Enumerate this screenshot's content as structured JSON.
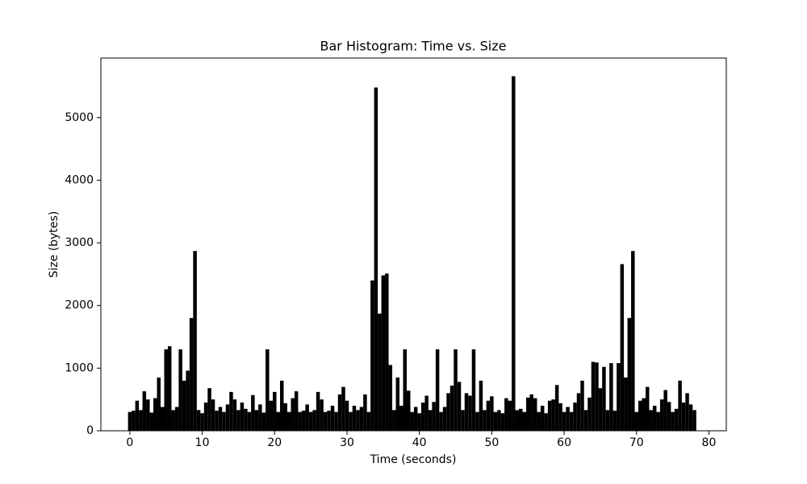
{
  "chart_data": {
    "type": "bar",
    "title": "Bar Histogram: Time vs. Size",
    "xlabel": "Time (seconds)",
    "ylabel": "Size (bytes)",
    "color": "#000000",
    "xlim": [
      -4,
      82.4
    ],
    "ylim": [
      0,
      5950
    ],
    "xticks": [
      0,
      10,
      20,
      30,
      40,
      50,
      60,
      70,
      80
    ],
    "yticks": [
      0,
      1000,
      2000,
      3000,
      4000,
      5000
    ],
    "x": [
      0,
      0.5,
      1,
      1.5,
      2,
      2.5,
      3,
      3.5,
      4,
      4.5,
      5,
      5.5,
      6,
      6.5,
      7,
      7.5,
      8,
      8.5,
      9,
      9.5,
      10,
      10.5,
      11,
      11.5,
      12,
      12.5,
      13,
      13.5,
      14,
      14.5,
      15,
      15.5,
      16,
      16.5,
      17,
      17.5,
      18,
      18.5,
      19,
      19.5,
      20,
      20.5,
      21,
      21.5,
      22,
      22.5,
      23,
      23.5,
      24,
      24.5,
      25,
      25.5,
      26,
      26.5,
      27,
      27.5,
      28,
      28.5,
      29,
      29.5,
      30,
      30.5,
      31,
      31.5,
      32,
      32.5,
      33,
      33.5,
      34,
      34.5,
      35,
      35.5,
      36,
      36.5,
      37,
      37.5,
      38,
      38.5,
      39,
      39.5,
      40,
      40.5,
      41,
      41.5,
      42,
      42.5,
      43,
      43.5,
      44,
      44.5,
      45,
      45.5,
      46,
      46.5,
      47,
      47.5,
      48,
      48.5,
      49,
      49.5,
      50,
      50.5,
      51,
      51.5,
      52,
      52.5,
      53,
      53.5,
      54,
      54.5,
      55,
      55.5,
      56,
      56.5,
      57,
      57.5,
      58,
      58.5,
      59,
      59.5,
      60,
      60.5,
      61,
      61.5,
      62,
      62.5,
      63,
      63.5,
      64,
      64.5,
      65,
      65.5,
      66,
      66.5,
      67,
      67.5,
      68,
      68.5,
      69,
      69.5,
      70,
      70.5,
      71,
      71.5,
      72,
      72.5,
      73,
      73.5,
      74,
      74.5,
      75,
      75.5,
      76,
      76.5,
      77,
      77.5,
      78
    ],
    "values": [
      300,
      320,
      480,
      330,
      630,
      500,
      290,
      520,
      850,
      380,
      1300,
      1350,
      330,
      380,
      1300,
      800,
      960,
      1800,
      2870,
      330,
      280,
      450,
      680,
      500,
      320,
      380,
      300,
      420,
      620,
      500,
      330,
      450,
      350,
      300,
      570,
      330,
      420,
      290,
      1300,
      480,
      620,
      300,
      800,
      440,
      300,
      520,
      630,
      300,
      320,
      420,
      300,
      330,
      620,
      500,
      300,
      320,
      400,
      300,
      580,
      700,
      480,
      300,
      400,
      330,
      380,
      580,
      300,
      2400,
      5480,
      1870,
      2480,
      2510,
      1050,
      330,
      850,
      400,
      1300,
      640,
      300,
      380,
      280,
      450,
      560,
      330,
      460,
      1300,
      300,
      380,
      600,
      720,
      1300,
      780,
      330,
      600,
      560,
      1300,
      300,
      800,
      330,
      480,
      550,
      300,
      330,
      280,
      520,
      480,
      5660,
      330,
      350,
      300,
      530,
      580,
      520,
      300,
      400,
      280,
      480,
      500,
      730,
      440,
      300,
      380,
      300,
      450,
      600,
      800,
      330,
      530,
      1100,
      1090,
      680,
      1020,
      330,
      1080,
      320,
      1080,
      2660,
      850,
      1800,
      2870,
      300,
      480,
      520,
      700,
      330,
      400,
      300,
      500,
      650,
      460,
      300,
      350,
      800,
      450,
      600,
      420,
      330
    ]
  }
}
